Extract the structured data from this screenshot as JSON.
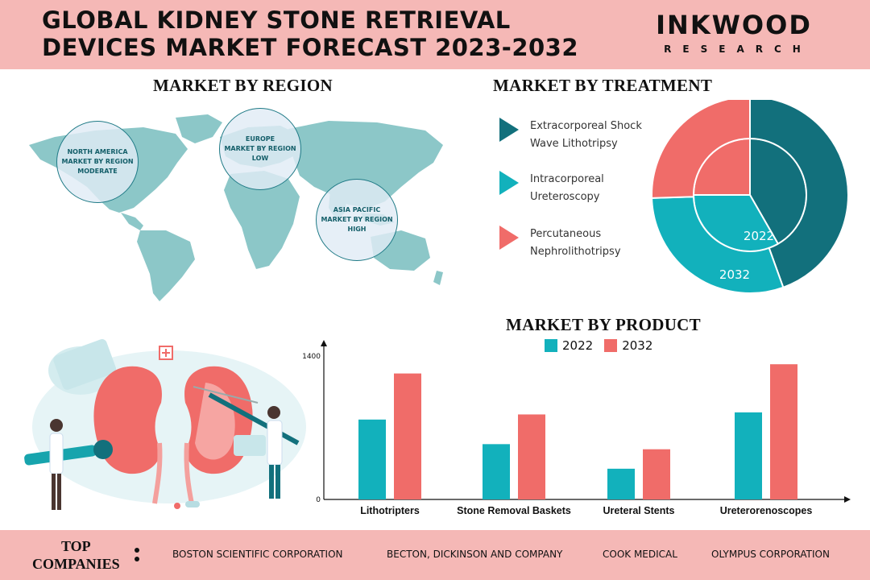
{
  "header": {
    "title_line1": "GLOBAL KIDNEY STONE RETRIEVAL",
    "title_line2": "DEVICES MARKET FORECAST 2023-2032",
    "brand_name": "INKWOOD",
    "brand_sub": "RESEARCH"
  },
  "region": {
    "title": "MARKET BY REGION",
    "bubbles": [
      {
        "line1": "NORTH AMERICA",
        "line2": "MARKET BY REGION",
        "line3": "MODERATE"
      },
      {
        "line1": "EUROPE",
        "line2": "MARKET BY REGION",
        "line3": "LOW"
      },
      {
        "line1": "ASIA PACIFIC",
        "line2": "MARKET BY REGION",
        "line3": "HIGH"
      }
    ],
    "map_color": "#8cc7c8"
  },
  "treatment": {
    "title": "MARKET BY TREATMENT",
    "legend": [
      {
        "line1": "Extracorporeal Shock",
        "line2": "Wave Lithotripsy",
        "color": "#12707c"
      },
      {
        "line1": "Intracorporeal",
        "line2": "Ureteroscopy",
        "color": "#12b1bc"
      },
      {
        "line1": "Percutaneous",
        "line2": "Nephrolithotripsy",
        "color": "#f06c69"
      }
    ],
    "year_inner": "2022",
    "year_outer": "2032"
  },
  "product": {
    "title": "MARKET BY PRODUCT"
  },
  "chart_data": [
    {
      "type": "pie",
      "title": "MARKET BY TREATMENT",
      "rings": [
        {
          "year": "2022",
          "values": [
            0.417,
            0.333,
            0.25
          ]
        },
        {
          "year": "2032",
          "values": [
            0.445,
            0.3,
            0.255
          ]
        }
      ],
      "categories": [
        "Extracorporeal Shock Wave Lithotripsy",
        "Intracorporeal Ureteroscopy",
        "Percutaneous Nephrolithotripsy"
      ],
      "colors": [
        "#12707c",
        "#12b1bc",
        "#f06c69"
      ]
    },
    {
      "type": "bar",
      "title": "MARKET BY PRODUCT",
      "categories": [
        "Lithotripters",
        "Stone Removal Baskets",
        "Ureteral Stents",
        "Ureterorenoscopes"
      ],
      "series": [
        {
          "name": "2022",
          "values": [
            780,
            540,
            300,
            850
          ],
          "color": "#12b1bc"
        },
        {
          "name": "2032",
          "values": [
            1230,
            830,
            490,
            1320
          ],
          "color": "#f06c69"
        }
      ],
      "yticks": [
        0,
        1400
      ],
      "ylim": [
        0,
        1400
      ],
      "legend": "top"
    }
  ],
  "footer": {
    "top_line1": "TOP",
    "top_line2": "COMPANIES",
    "companies": [
      "BOSTON SCIENTIFIC CORPORATION",
      "BECTON, DICKINSON AND COMPANY",
      "COOK MEDICAL",
      "OLYMPUS CORPORATION"
    ]
  }
}
